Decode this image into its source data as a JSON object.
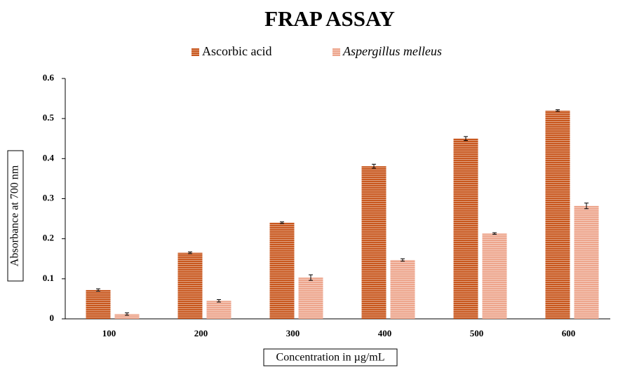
{
  "chart_data": {
    "type": "bar",
    "title": "FRAP ASSAY",
    "x_label": "Concentration in µg/mL",
    "y_label": "Absorbance at 700 nm",
    "categories": [
      "100",
      "200",
      "300",
      "400",
      "500",
      "600"
    ],
    "series": [
      {
        "name": "Ascorbic acid",
        "color": "#c8571e",
        "values": [
          0.072,
          0.165,
          0.24,
          0.381,
          0.45,
          0.52
        ],
        "errors": [
          0.003,
          0.002,
          0.002,
          0.005,
          0.005,
          0.002
        ]
      },
      {
        "name": "Aspergillus melleus",
        "color": "#eda58c",
        "values": [
          0.012,
          0.045,
          0.103,
          0.147,
          0.213,
          0.282
        ],
        "errors": [
          0.003,
          0.003,
          0.007,
          0.003,
          0.002,
          0.007
        ]
      }
    ],
    "ylim": [
      0,
      0.6
    ],
    "yticks": [
      0,
      0.1,
      0.2,
      0.3,
      0.4,
      0.5,
      0.6
    ],
    "grid": false,
    "legend": "top"
  }
}
